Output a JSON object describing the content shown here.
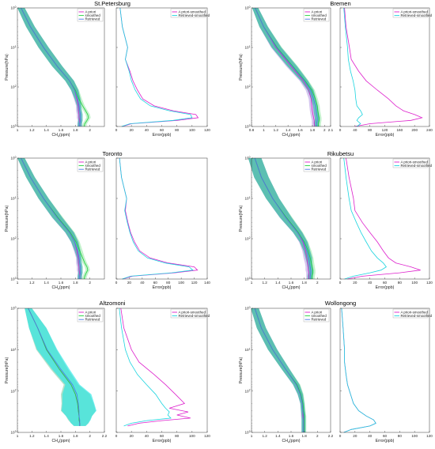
{
  "colors": {
    "apriori": "#dd1fcc",
    "smoothed": "#1fd13a",
    "retrieved": "#4a78e6",
    "band_apriori": "#c7b1ea",
    "band_smoothed": "#a9ecb6",
    "band_retrieved": "#1fa8a3",
    "band_retrieved_alt": "#19e6e6",
    "err_apriori": "#dd1fcc",
    "err_retrieved": "#19d4df"
  },
  "chart_data": [
    {
      "type": "line",
      "title": "St.Petersburg",
      "profile": {
        "xlabel": "CH4(ppm)",
        "ylabel": "Pressure(hPa)",
        "xlim": [
          1,
          2.2
        ],
        "xticks": [
          "1",
          "1.2",
          "1.4",
          "1.6",
          "1.8",
          "2"
        ],
        "yscale": "log",
        "ylim": [
          1,
          1000
        ],
        "yticks": [
          "10^0",
          "10^1",
          "10^2",
          "10^3"
        ],
        "legend": [
          "A priori",
          "smoothed",
          "Retrieved"
        ],
        "legend_position": "top-right",
        "pressure": [
          1,
          3,
          10,
          30,
          70,
          120,
          200,
          300,
          400,
          500,
          600,
          700,
          850,
          1000
        ],
        "apriori": [
          1.05,
          1.18,
          1.36,
          1.55,
          1.72,
          1.79,
          1.82,
          1.84,
          1.84,
          1.85,
          1.85,
          1.86,
          1.86,
          1.86
        ],
        "smoothed": [
          1.05,
          1.18,
          1.36,
          1.55,
          1.72,
          1.8,
          1.85,
          1.9,
          1.94,
          1.97,
          1.98,
          1.96,
          1.93,
          1.92
        ],
        "retrieved": [
          1.05,
          1.18,
          1.36,
          1.55,
          1.72,
          1.79,
          1.83,
          1.85,
          1.86,
          1.87,
          1.87,
          1.87,
          1.86,
          1.86
        ],
        "band_width": [
          0.05,
          0.06,
          0.07,
          0.07,
          0.06,
          0.05,
          0.04,
          0.03,
          0.03,
          0.03,
          0.03,
          0.03,
          0.03,
          0.03
        ]
      },
      "error": {
        "xlabel": "Error(ppb)",
        "xlim": [
          0,
          120
        ],
        "xticks": [
          "0",
          "20",
          "40",
          "60",
          "80",
          "100",
          "120"
        ],
        "legend": [
          "A priori-smoothed",
          "Retrieved-smoothed"
        ],
        "legend_position": "top-right",
        "pressure": [
          1,
          3,
          10,
          20,
          40,
          70,
          120,
          200,
          300,
          400,
          500,
          600,
          700,
          850,
          1000
        ],
        "apriori": [
          5,
          8,
          15,
          12,
          18,
          22,
          28,
          35,
          50,
          75,
          105,
          108,
          80,
          20,
          8
        ],
        "retrieved": [
          5,
          8,
          15,
          12,
          17,
          20,
          25,
          32,
          45,
          70,
          98,
          100,
          75,
          18,
          7
        ]
      }
    },
    {
      "type": "line",
      "title": "Bremen",
      "profile": {
        "xlabel": "CH4(ppm)",
        "ylabel": "Pressure(hPa)",
        "xlim": [
          0.8,
          2.1
        ],
        "xticks": [
          "0.8",
          "1",
          "1.2",
          "1.4",
          "1.6",
          "1.8",
          "2",
          "2.1"
        ],
        "yscale": "log",
        "ylim": [
          1,
          1000
        ],
        "yticks": [
          "10^0",
          "10^1",
          "10^2",
          "10^3"
        ],
        "legend": [
          "A priori",
          "smoothed",
          "Retrieved"
        ],
        "legend_position": "top-right",
        "pressure": [
          1,
          3,
          10,
          30,
          70,
          120,
          200,
          300,
          400,
          500,
          600,
          700,
          850,
          1000
        ],
        "apriori": [
          0.86,
          1.0,
          1.2,
          1.45,
          1.65,
          1.74,
          1.78,
          1.79,
          1.8,
          1.81,
          1.82,
          1.83,
          1.83,
          1.84
        ],
        "smoothed": [
          0.86,
          1.0,
          1.22,
          1.48,
          1.68,
          1.79,
          1.85,
          1.88,
          1.89,
          1.9,
          1.91,
          1.91,
          1.9,
          1.9
        ],
        "retrieved": [
          0.86,
          1.0,
          1.21,
          1.47,
          1.67,
          1.77,
          1.82,
          1.85,
          1.86,
          1.87,
          1.88,
          1.88,
          1.87,
          1.87
        ],
        "band_width": [
          0.05,
          0.07,
          0.08,
          0.08,
          0.06,
          0.05,
          0.04,
          0.04,
          0.04,
          0.04,
          0.04,
          0.04,
          0.04,
          0.04
        ]
      },
      "error": {
        "xlabel": "Error(ppb)",
        "xlim": [
          0,
          240
        ],
        "xticks": [
          "0",
          "40",
          "80",
          "120",
          "160",
          "200",
          "240"
        ],
        "legend": [
          "A priori-smoothed",
          "Retrieved-smoothed"
        ],
        "legend_position": "top-right",
        "pressure": [
          1,
          3,
          10,
          20,
          40,
          70,
          120,
          200,
          300,
          400,
          500,
          600,
          700,
          850,
          1000
        ],
        "apriori": [
          12,
          16,
          25,
          30,
          50,
          70,
          100,
          130,
          150,
          170,
          200,
          220,
          190,
          80,
          40
        ],
        "retrieved": [
          10,
          14,
          20,
          22,
          28,
          35,
          40,
          42,
          45,
          55,
          60,
          50,
          45,
          55,
          45
        ]
      }
    },
    {
      "type": "line",
      "title": "Toronto",
      "profile": {
        "xlabel": "CH4(ppm)",
        "ylabel": "Pressure(hPa)",
        "xlim": [
          1,
          2.2
        ],
        "xticks": [
          "1",
          "1.2",
          "1.4",
          "1.6",
          "1.8",
          "2"
        ],
        "yscale": "log",
        "ylim": [
          1,
          1000
        ],
        "yticks": [
          "10^0",
          "10^1",
          "10^2",
          "10^3"
        ],
        "legend": [
          "A priori",
          "smoothed",
          "Retrieved"
        ],
        "legend_position": "top-right",
        "pressure": [
          1,
          3,
          10,
          30,
          70,
          120,
          200,
          300,
          400,
          500,
          600,
          700,
          850,
          1000
        ],
        "apriori": [
          1.05,
          1.18,
          1.36,
          1.55,
          1.72,
          1.79,
          1.82,
          1.84,
          1.84,
          1.85,
          1.85,
          1.86,
          1.86,
          1.86
        ],
        "smoothed": [
          1.05,
          1.18,
          1.36,
          1.56,
          1.73,
          1.81,
          1.86,
          1.9,
          1.93,
          1.96,
          1.97,
          1.95,
          1.93,
          1.92
        ],
        "retrieved": [
          1.05,
          1.18,
          1.36,
          1.55,
          1.72,
          1.79,
          1.83,
          1.85,
          1.86,
          1.87,
          1.87,
          1.87,
          1.86,
          1.86
        ],
        "band_width": [
          0.05,
          0.06,
          0.07,
          0.07,
          0.06,
          0.05,
          0.04,
          0.03,
          0.03,
          0.03,
          0.03,
          0.03,
          0.03,
          0.03
        ]
      },
      "error": {
        "xlabel": "Error(ppb)",
        "xlim": [
          0,
          140
        ],
        "xticks": [
          "0",
          "20",
          "40",
          "60",
          "80",
          "100",
          "120",
          "140"
        ],
        "legend": [],
        "legend_position": "none",
        "pressure": [
          1,
          3,
          10,
          20,
          40,
          70,
          120,
          200,
          300,
          400,
          500,
          600,
          700,
          850,
          1000
        ],
        "apriori": [
          5,
          8,
          16,
          14,
          18,
          22,
          28,
          36,
          52,
          80,
          120,
          125,
          90,
          25,
          10
        ],
        "retrieved": [
          5,
          8,
          16,
          13,
          17,
          21,
          26,
          34,
          48,
          75,
          112,
          118,
          85,
          22,
          9
        ]
      }
    },
    {
      "type": "line",
      "title": "Rikubetsu",
      "profile": {
        "xlabel": "CH4(ppm)",
        "ylabel": "Pressure(hPa)",
        "xlim": [
          1,
          2.2
        ],
        "xticks": [
          "1",
          "1.2",
          "1.4",
          "1.6",
          "1.8",
          "2"
        ],
        "yscale": "log",
        "ylim": [
          1,
          1000
        ],
        "yticks": [
          "10^0",
          "10^1",
          "10^2",
          "10^3"
        ],
        "legend": [
          "A priori",
          "smoothed",
          "Retrieved"
        ],
        "legend_position": "top-right",
        "pressure": [
          1,
          3,
          10,
          30,
          70,
          120,
          200,
          300,
          400,
          500,
          600,
          700,
          850,
          1000
        ],
        "apriori": [
          1.05,
          1.15,
          1.32,
          1.52,
          1.7,
          1.78,
          1.82,
          1.84,
          1.85,
          1.86,
          1.86,
          1.87,
          1.87,
          1.87
        ],
        "smoothed": [
          1.05,
          1.15,
          1.32,
          1.53,
          1.71,
          1.8,
          1.86,
          1.89,
          1.91,
          1.92,
          1.93,
          1.93,
          1.92,
          1.92
        ],
        "retrieved": [
          1.05,
          1.15,
          1.32,
          1.52,
          1.7,
          1.79,
          1.84,
          1.87,
          1.88,
          1.89,
          1.9,
          1.9,
          1.89,
          1.89
        ],
        "band_width": [
          0.1,
          0.11,
          0.1,
          0.09,
          0.07,
          0.06,
          0.05,
          0.05,
          0.04,
          0.04,
          0.04,
          0.04,
          0.04,
          0.04
        ]
      },
      "error": {
        "xlabel": "Error(ppb)",
        "xlim": [
          0,
          120
        ],
        "xticks": [
          "0",
          "20",
          "40",
          "60",
          "80",
          "100",
          "120"
        ],
        "legend": [
          "A priori-smoothed",
          "Retrieved-smoothed"
        ],
        "legend_position": "top-right",
        "pressure": [
          1,
          3,
          10,
          20,
          40,
          70,
          120,
          200,
          300,
          400,
          500,
          600,
          700,
          850,
          1000
        ],
        "apriori": [
          8,
          12,
          18,
          20,
          30,
          40,
          50,
          58,
          65,
          75,
          95,
          108,
          80,
          30,
          10
        ],
        "retrieved": [
          5,
          8,
          12,
          15,
          22,
          28,
          35,
          42,
          50,
          58,
          62,
          55,
          40,
          18,
          6
        ]
      }
    },
    {
      "type": "line",
      "title": "Altzomoni",
      "profile": {
        "xlabel": "CH4(ppm)",
        "ylabel": "Pressure(hPa)",
        "xlim": [
          1,
          2.2
        ],
        "xticks": [
          "1",
          "1.2",
          "1.4",
          "1.6",
          "1.8",
          "2",
          "2.2"
        ],
        "yscale": "log",
        "ylim": [
          1,
          1000
        ],
        "yticks": [
          "10^0",
          "10^1",
          "10^2",
          "10^3"
        ],
        "legend": [
          "A priori",
          "smoothed",
          "Retrieved"
        ],
        "legend_position": "top-right",
        "pressure": [
          1,
          3,
          10,
          30,
          70,
          120,
          200,
          300,
          400,
          500,
          600,
          700
        ],
        "apriori": [
          1.15,
          1.28,
          1.4,
          1.58,
          1.74,
          1.8,
          1.83,
          1.84,
          1.85,
          1.85,
          1.86,
          1.86
        ],
        "smoothed": [
          1.15,
          1.28,
          1.4,
          1.58,
          1.74,
          1.8,
          1.83,
          1.84,
          1.85,
          1.85,
          1.86,
          1.86
        ],
        "retrieved": [
          1.15,
          1.28,
          1.41,
          1.6,
          1.76,
          1.82,
          1.84,
          1.85,
          1.85,
          1.86,
          1.86,
          1.86
        ],
        "band_width": [
          0.05,
          0.12,
          0.14,
          0.12,
          0.1,
          0.2,
          0.22,
          0.24,
          0.18,
          0.15,
          0.12,
          0.08
        ]
      },
      "error": {
        "xlabel": "Error(ppb)",
        "xlim": [
          0,
          120
        ],
        "xticks": [
          "0",
          "20",
          "40",
          "60",
          "80",
          "100",
          "120"
        ],
        "legend": [
          "A priori-smoothed",
          "Retrieved-smoothed"
        ],
        "legend_position": "top-right",
        "pressure": [
          1,
          3,
          10,
          20,
          40,
          70,
          120,
          200,
          260,
          320,
          380,
          450,
          520,
          600,
          700
        ],
        "apriori": [
          6,
          10,
          20,
          30,
          50,
          65,
          78,
          90,
          70,
          95,
          80,
          98,
          60,
          30,
          15
        ],
        "retrieved": [
          4,
          7,
          12,
          18,
          28,
          40,
          52,
          60,
          65,
          70,
          68,
          72,
          40,
          20,
          10
        ]
      }
    },
    {
      "type": "line",
      "title": "Wollongong",
      "profile": {
        "xlabel": "CH4(ppm)",
        "ylabel": "Pressure(hPa)",
        "xlim": [
          1,
          2.2
        ],
        "xticks": [
          "1",
          "1.2",
          "1.4",
          "1.6",
          "1.8",
          "2",
          "2.2"
        ],
        "yscale": "log",
        "ylim": [
          1,
          1000
        ],
        "yticks": [
          "10^0",
          "10^1",
          "10^2",
          "10^3"
        ],
        "legend": [
          "A priori",
          "smoothed",
          "Retrieved"
        ],
        "legend_position": "top-right",
        "pressure": [
          1,
          3,
          10,
          30,
          70,
          120,
          200,
          300,
          400,
          500,
          600,
          700,
          850,
          1000
        ],
        "apriori": [
          1.05,
          1.15,
          1.32,
          1.52,
          1.68,
          1.74,
          1.77,
          1.78,
          1.78,
          1.79,
          1.79,
          1.79,
          1.79,
          1.79
        ],
        "smoothed": [
          1.05,
          1.15,
          1.32,
          1.52,
          1.69,
          1.75,
          1.78,
          1.79,
          1.8,
          1.8,
          1.8,
          1.8,
          1.8,
          1.8
        ],
        "retrieved": [
          1.05,
          1.15,
          1.32,
          1.52,
          1.68,
          1.74,
          1.77,
          1.78,
          1.79,
          1.79,
          1.79,
          1.79,
          1.79,
          1.79
        ],
        "band_width": [
          0.06,
          0.07,
          0.07,
          0.06,
          0.05,
          0.04,
          0.03,
          0.03,
          0.03,
          0.03,
          0.03,
          0.03,
          0.03,
          0.03
        ]
      },
      "error": {
        "xlabel": "Error(ppb)",
        "xlim": [
          0,
          120
        ],
        "xticks": [
          "0",
          "20",
          "40",
          "60",
          "80",
          "100",
          "120"
        ],
        "legend": [
          "A priori-smoothed",
          "Retrieved-smoothed"
        ],
        "legend_position": "top-right",
        "pressure": [
          1,
          3,
          10,
          20,
          40,
          70,
          120,
          200,
          300,
          400,
          500,
          600,
          700,
          850,
          1000
        ],
        "apriori": [
          2,
          4,
          6,
          6,
          8,
          10,
          14,
          18,
          25,
          35,
          45,
          48,
          40,
          15,
          5
        ],
        "retrieved": [
          2,
          4,
          6,
          6,
          8,
          10,
          14,
          18,
          25,
          35,
          45,
          48,
          40,
          15,
          5
        ]
      }
    }
  ]
}
